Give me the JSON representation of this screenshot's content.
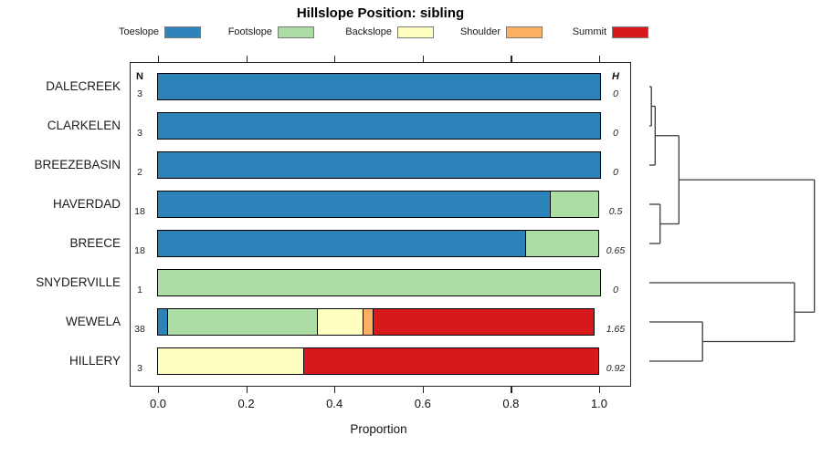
{
  "chart_data": {
    "type": "bar",
    "variant": "horizontal-stacked-proportion",
    "title": "Hillslope Position: sibling",
    "xlabel": "Proportion",
    "xlim": [
      0,
      1
    ],
    "xticks": [
      {
        "value": 0.0,
        "label": "0.0"
      },
      {
        "value": 0.2,
        "label": "0.2"
      },
      {
        "value": 0.4,
        "label": "0.4"
      },
      {
        "value": 0.6,
        "label": "0.6"
      },
      {
        "value": 0.8,
        "label": "0.8"
      },
      {
        "value": 1.0,
        "label": "1.0"
      }
    ],
    "legend_position": "top",
    "legend": [
      {
        "label": "Toeslope",
        "color": "#2B83BA"
      },
      {
        "label": "Footslope",
        "color": "#ABDDA4"
      },
      {
        "label": "Backslope",
        "color": "#FFFFBF"
      },
      {
        "label": "Shoulder",
        "color": "#FDAE61"
      },
      {
        "label": "Summit",
        "color": "#D7191C"
      }
    ],
    "columns": {
      "n_header": "N",
      "h_header": "H"
    },
    "rows": [
      {
        "name": "DALECREEK",
        "n": "3",
        "h": "0",
        "segments": [
          {
            "cat": "Toeslope",
            "frac": 1.0
          }
        ]
      },
      {
        "name": "CLARKELEN",
        "n": "3",
        "h": "0",
        "segments": [
          {
            "cat": "Toeslope",
            "frac": 1.0
          }
        ]
      },
      {
        "name": "BREEZEBASIN",
        "n": "2",
        "h": "0",
        "segments": [
          {
            "cat": "Toeslope",
            "frac": 1.0
          }
        ]
      },
      {
        "name": "HAVERDAD",
        "n": "18",
        "h": "0.5",
        "segments": [
          {
            "cat": "Toeslope",
            "frac": 0.889
          },
          {
            "cat": "Footslope",
            "frac": 0.111
          }
        ]
      },
      {
        "name": "BREECE",
        "n": "18",
        "h": "0.65",
        "segments": [
          {
            "cat": "Toeslope",
            "frac": 0.833
          },
          {
            "cat": "Footslope",
            "frac": 0.167
          }
        ]
      },
      {
        "name": "SNYDERVILLE",
        "n": "1",
        "h": "0",
        "segments": [
          {
            "cat": "Footslope",
            "frac": 1.0
          }
        ]
      },
      {
        "name": "WEWELA",
        "n": "38",
        "h": "1.65",
        "segments": [
          {
            "cat": "Toeslope",
            "frac": 0.026
          },
          {
            "cat": "Footslope",
            "frac": 0.342
          },
          {
            "cat": "Backslope",
            "frac": 0.106
          },
          {
            "cat": "Shoulder",
            "frac": 0.026
          },
          {
            "cat": "Summit",
            "frac": 0.5
          }
        ]
      },
      {
        "name": "HILLERY",
        "n": "3",
        "h": "0.92",
        "segments": [
          {
            "cat": "Backslope",
            "frac": 0.333
          },
          {
            "cat": "Summit",
            "frac": 0.667
          }
        ]
      }
    ],
    "dendrogram": {
      "orientation": "right",
      "heights_normalized": true,
      "tree": {
        "h": 1.0,
        "children": [
          {
            "h": 0.179,
            "children": [
              {
                "h": 0.035,
                "children": [
                  {
                    "h": 0.012,
                    "children": [
                      {
                        "leaf": "DALECREEK"
                      },
                      {
                        "leaf": "CLARKELEN"
                      }
                    ]
                  },
                  {
                    "leaf": "BREEZEBASIN"
                  }
                ]
              },
              {
                "h": 0.065,
                "children": [
                  {
                    "leaf": "HAVERDAD"
                  },
                  {
                    "leaf": "BREECE"
                  }
                ]
              }
            ]
          },
          {
            "h": 0.879,
            "children": [
              {
                "leaf": "SNYDERVILLE"
              },
              {
                "h": 0.322,
                "children": [
                  {
                    "leaf": "WEWELA"
                  },
                  {
                    "leaf": "HILLERY"
                  }
                ]
              }
            ]
          }
        ]
      }
    }
  }
}
